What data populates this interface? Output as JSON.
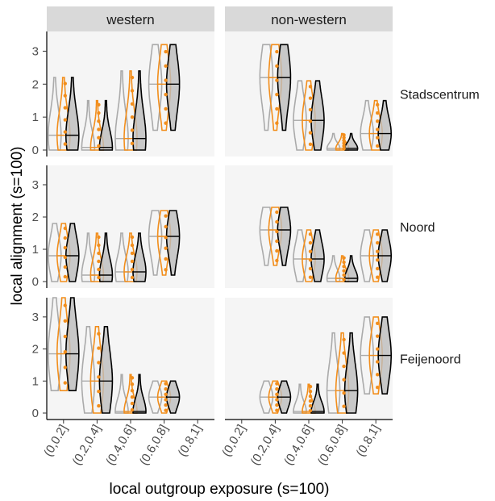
{
  "chart_data": {
    "type": "violin",
    "xlabel": "local outgroup exposure (s=100)",
    "ylabel": "local alignment (s=100)",
    "ylim": [
      0,
      3.5
    ],
    "y_ticks": [
      "0",
      "1",
      "2",
      "3"
    ],
    "categories": [
      "(0,0.2]",
      "(0.2,0.4]",
      "(0.4,0.6]",
      "(0.6,0.8]",
      "(0.8,1]"
    ],
    "columns": [
      "western",
      "non-western"
    ],
    "rows": [
      "Stadscentrum",
      "Noord",
      "Feijenoord"
    ],
    "series_colors": [
      "#aaaaaa",
      "#f28e1c",
      "#000000"
    ],
    "panels": [
      {
        "row": 0,
        "col": 0,
        "groups": [
          {
            "cat": 0,
            "median": 0.45,
            "min": 0.0,
            "max": 2.2
          },
          {
            "cat": 1,
            "median": 0.08,
            "min": 0.0,
            "max": 1.5
          },
          {
            "cat": 2,
            "median": 0.35,
            "min": 0.0,
            "max": 2.4
          },
          {
            "cat": 3,
            "median": 2.0,
            "min": 0.6,
            "max": 3.2
          }
        ]
      },
      {
        "row": 0,
        "col": 1,
        "groups": [
          {
            "cat": 1,
            "median": 2.2,
            "min": 0.6,
            "max": 3.2
          },
          {
            "cat": 2,
            "median": 0.9,
            "min": 0.0,
            "max": 2.1
          },
          {
            "cat": 3,
            "median": 0.05,
            "min": 0.0,
            "max": 0.5
          },
          {
            "cat": 4,
            "median": 0.5,
            "min": 0.0,
            "max": 1.5
          }
        ]
      },
      {
        "row": 1,
        "col": 0,
        "groups": [
          {
            "cat": 0,
            "median": 0.8,
            "min": 0.0,
            "max": 1.8
          },
          {
            "cat": 1,
            "median": 0.2,
            "min": 0.0,
            "max": 1.5
          },
          {
            "cat": 2,
            "median": 0.3,
            "min": 0.0,
            "max": 1.5
          },
          {
            "cat": 3,
            "median": 1.4,
            "min": 0.2,
            "max": 2.2
          }
        ]
      },
      {
        "row": 1,
        "col": 1,
        "groups": [
          {
            "cat": 1,
            "median": 1.6,
            "min": 0.5,
            "max": 2.3
          },
          {
            "cat": 2,
            "median": 0.7,
            "min": 0.0,
            "max": 1.6
          },
          {
            "cat": 3,
            "median": 0.1,
            "min": 0.0,
            "max": 0.8
          },
          {
            "cat": 4,
            "median": 0.8,
            "min": 0.0,
            "max": 1.6
          }
        ]
      },
      {
        "row": 2,
        "col": 0,
        "groups": [
          {
            "cat": 0,
            "median": 1.85,
            "min": 0.7,
            "max": 3.6
          },
          {
            "cat": 1,
            "median": 1.0,
            "min": 0.0,
            "max": 2.7
          },
          {
            "cat": 2,
            "median": 0.05,
            "min": 0.0,
            "max": 1.2
          },
          {
            "cat": 3,
            "median": 0.5,
            "min": 0.0,
            "max": 1.0
          }
        ]
      },
      {
        "row": 2,
        "col": 1,
        "groups": [
          {
            "cat": 1,
            "median": 0.5,
            "min": 0.0,
            "max": 1.0
          },
          {
            "cat": 2,
            "median": 0.05,
            "min": 0.0,
            "max": 0.9
          },
          {
            "cat": 3,
            "median": 0.7,
            "min": 0.0,
            "max": 2.5
          },
          {
            "cat": 4,
            "median": 1.8,
            "min": 0.6,
            "max": 3.0
          }
        ]
      }
    ]
  }
}
